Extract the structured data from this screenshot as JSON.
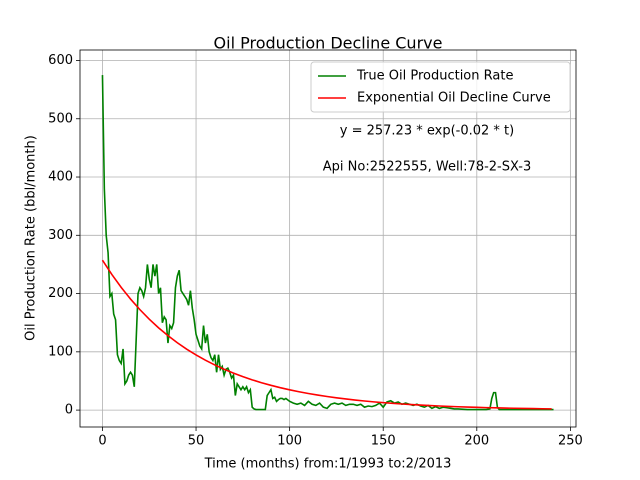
{
  "chart_data": {
    "type": "line",
    "title": "Oil Production Decline Curve",
    "xlabel": "Time (months) from:1/1993 to:2/2013",
    "ylabel": "Oil Production Rate (bbl/month)",
    "annotations": [
      "y = 257.23 * exp(-0.02 * t)",
      "Api No:2522555, Well:78-2-SX-3"
    ],
    "xlim": [
      -12,
      253
    ],
    "ylim": [
      -29,
      618
    ],
    "xticks": [
      0,
      50,
      100,
      150,
      200,
      250
    ],
    "yticks": [
      0,
      100,
      200,
      300,
      400,
      500,
      600
    ],
    "grid": true,
    "legend": "upper right",
    "series": [
      {
        "name": "True Oil Production Rate",
        "color": "#008000",
        "x": [
          0,
          1,
          2,
          3,
          4,
          5,
          6,
          7,
          8,
          9,
          10,
          11,
          12,
          13,
          14,
          15,
          16,
          17,
          18,
          19,
          20,
          21,
          22,
          23,
          24,
          25,
          26,
          27,
          28,
          29,
          30,
          31,
          32,
          33,
          34,
          35,
          36,
          37,
          38,
          39,
          40,
          41,
          42,
          43,
          44,
          45,
          46,
          47,
          48,
          49,
          50,
          51,
          52,
          53,
          54,
          55,
          56,
          57,
          58,
          59,
          60,
          61,
          62,
          63,
          64,
          65,
          66,
          67,
          68,
          69,
          70,
          71,
          72,
          73,
          74,
          75,
          76,
          77,
          78,
          79,
          80,
          81,
          82,
          83,
          84,
          85,
          86,
          87,
          88,
          89,
          90,
          91,
          92,
          93,
          94,
          95,
          96,
          97,
          98,
          100,
          102,
          104,
          106,
          108,
          110,
          112,
          114,
          116,
          118,
          120,
          122,
          124,
          126,
          128,
          130,
          132,
          134,
          136,
          138,
          140,
          142,
          144,
          146,
          148,
          150,
          152,
          154,
          156,
          158,
          160,
          162,
          164,
          166,
          168,
          170,
          172,
          174,
          176,
          178,
          180,
          182,
          184,
          186,
          188,
          190,
          195,
          200,
          205,
          207,
          208,
          209,
          210,
          211,
          212,
          220,
          230,
          241
        ],
        "values": [
          575,
          380,
          300,
          270,
          195,
          200,
          165,
          155,
          95,
          85,
          80,
          105,
          45,
          50,
          60,
          65,
          60,
          40,
          120,
          200,
          210,
          205,
          195,
          210,
          250,
          225,
          210,
          250,
          230,
          250,
          200,
          210,
          150,
          160,
          155,
          115,
          145,
          140,
          150,
          210,
          230,
          240,
          205,
          200,
          195,
          190,
          180,
          205,
          175,
          155,
          130,
          120,
          110,
          105,
          145,
          115,
          130,
          100,
          90,
          85,
          95,
          65,
          95,
          70,
          75,
          60,
          70,
          72,
          65,
          55,
          60,
          25,
          45,
          40,
          35,
          40,
          35,
          40,
          30,
          35,
          5,
          2,
          1,
          1,
          1,
          1,
          1,
          1,
          25,
          30,
          35,
          20,
          22,
          15,
          18,
          20,
          20,
          18,
          20,
          15,
          12,
          10,
          12,
          8,
          15,
          10,
          8,
          12,
          5,
          3,
          10,
          12,
          10,
          12,
          8,
          10,
          10,
          8,
          10,
          5,
          7,
          6,
          8,
          12,
          5,
          14,
          16,
          12,
          14,
          10,
          12,
          10,
          8,
          10,
          7,
          5,
          8,
          3,
          6,
          3,
          5,
          4,
          3,
          2,
          2,
          1,
          1,
          1,
          2,
          20,
          30,
          30,
          5,
          1,
          1,
          1,
          1
        ]
      },
      {
        "name": "Exponential Oil Decline Curve",
        "color": "#ff0000",
        "x": [
          0,
          5,
          10,
          15,
          20,
          25,
          30,
          35,
          40,
          45,
          50,
          55,
          60,
          65,
          70,
          75,
          80,
          85,
          90,
          95,
          100,
          105,
          110,
          115,
          120,
          125,
          130,
          135,
          140,
          145,
          150,
          155,
          160,
          165,
          170,
          175,
          180,
          185,
          190,
          195,
          200,
          205,
          210,
          215,
          220,
          225,
          230,
          235,
          240
        ],
        "values": [
          257.23,
          232.75,
          210.6,
          190.56,
          172.42,
          156.02,
          141.17,
          127.74,
          115.58,
          104.58,
          94.63,
          85.62,
          77.47,
          70.1,
          63.43,
          57.39,
          51.93,
          46.99,
          42.52,
          38.47,
          34.81,
          31.5,
          28.5,
          25.79,
          23.33,
          21.11,
          19.1,
          17.29,
          15.64,
          14.15,
          12.81,
          11.59,
          10.48,
          9.49,
          8.58,
          7.77,
          7.03,
          6.36,
          5.75,
          5.21,
          4.71,
          4.26,
          3.86,
          3.49,
          3.16,
          2.86,
          2.58,
          2.34,
          2.12
        ]
      }
    ]
  }
}
